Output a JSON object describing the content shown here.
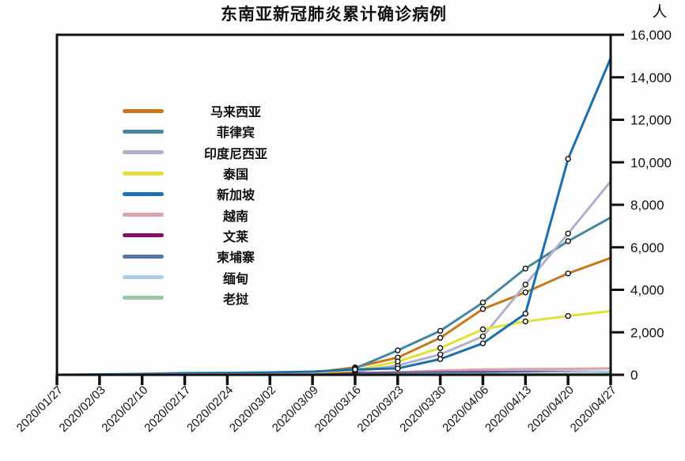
{
  "chart_data": {
    "type": "line",
    "title": "东南亚新冠肺炎累计确诊病例",
    "unit_label": "人",
    "xlabel": "",
    "ylabel": "",
    "x": [
      "2020/01/27",
      "2020/02/03",
      "2020/02/10",
      "2020/02/17",
      "2020/02/24",
      "2020/03/02",
      "2020/03/09",
      "2020/03/16",
      "2020/03/23",
      "2020/03/30",
      "2020/04/06",
      "2020/04/13",
      "2020/04/20",
      "2020/04/27"
    ],
    "ylim": [
      0,
      16000
    ],
    "ytick_step": 2000,
    "yticks": [
      "0",
      "2,000",
      "4,000",
      "6,000",
      "8,000",
      "10,000",
      "12,000",
      "14,000",
      "16,000"
    ],
    "grid": false,
    "legend_position": "upper-left-inside",
    "series": [
      {
        "key": "malaysia",
        "name": "马来西亚",
        "color": "#c67a1e",
        "values": [
          0,
          0,
          0,
          0,
          0,
          30,
          100,
          350,
          810,
          1740,
          3100,
          3880,
          4770,
          5500
        ],
        "marker_range": [
          7,
          12
        ]
      },
      {
        "key": "philippines",
        "name": "菲律宾",
        "color": "#46899b",
        "values": [
          0,
          0,
          0,
          0,
          10,
          30,
          60,
          300,
          1150,
          2070,
          3400,
          5000,
          6290,
          7400
        ],
        "marker_range": [
          7,
          12
        ]
      },
      {
        "key": "indonesia",
        "name": "印度尼西亚",
        "color": "#b3aecb",
        "values": [
          0,
          0,
          0,
          0,
          0,
          0,
          30,
          150,
          440,
          960,
          1810,
          4250,
          6650,
          9100
        ],
        "marker_range": [
          7,
          12
        ]
      },
      {
        "key": "thailand",
        "name": "泰国",
        "color": "#e4e03a",
        "values": [
          0,
          0,
          10,
          30,
          40,
          40,
          50,
          200,
          630,
          1260,
          2140,
          2510,
          2770,
          3000
        ],
        "marker_range": [
          7,
          12
        ]
      },
      {
        "key": "singapore",
        "name": "新加坡",
        "color": "#1b6fae",
        "values": [
          0,
          20,
          40,
          80,
          90,
          110,
          150,
          250,
          300,
          740,
          1480,
          2880,
          10160,
          14900
        ],
        "marker_range": [
          7,
          12
        ]
      },
      {
        "key": "vietnam",
        "name": "越南",
        "color": "#d9a3ab",
        "values": [
          0,
          0,
          10,
          15,
          15,
          15,
          30,
          60,
          120,
          200,
          250,
          270,
          280,
          300
        ]
      },
      {
        "key": "brunei",
        "name": "文莱",
        "color": "#85105f",
        "values": [
          0,
          0,
          0,
          0,
          0,
          0,
          0,
          75,
          95,
          115,
          135,
          136,
          138,
          140
        ]
      },
      {
        "key": "cambodia",
        "name": "柬埔寨",
        "color": "#5a74aa",
        "values": [
          0,
          0,
          0,
          0,
          0,
          0,
          0,
          35,
          85,
          105,
          115,
          120,
          122,
          122
        ]
      },
      {
        "key": "myanmar",
        "name": "缅甸",
        "color": "#abcce5",
        "values": [
          0,
          0,
          0,
          0,
          0,
          0,
          0,
          0,
          5,
          15,
          20,
          60,
          110,
          150
        ]
      },
      {
        "key": "laos",
        "name": "老挝",
        "color": "#9dc5a9",
        "values": [
          0,
          0,
          0,
          0,
          0,
          0,
          0,
          0,
          2,
          8,
          12,
          19,
          19,
          19
        ]
      }
    ]
  }
}
